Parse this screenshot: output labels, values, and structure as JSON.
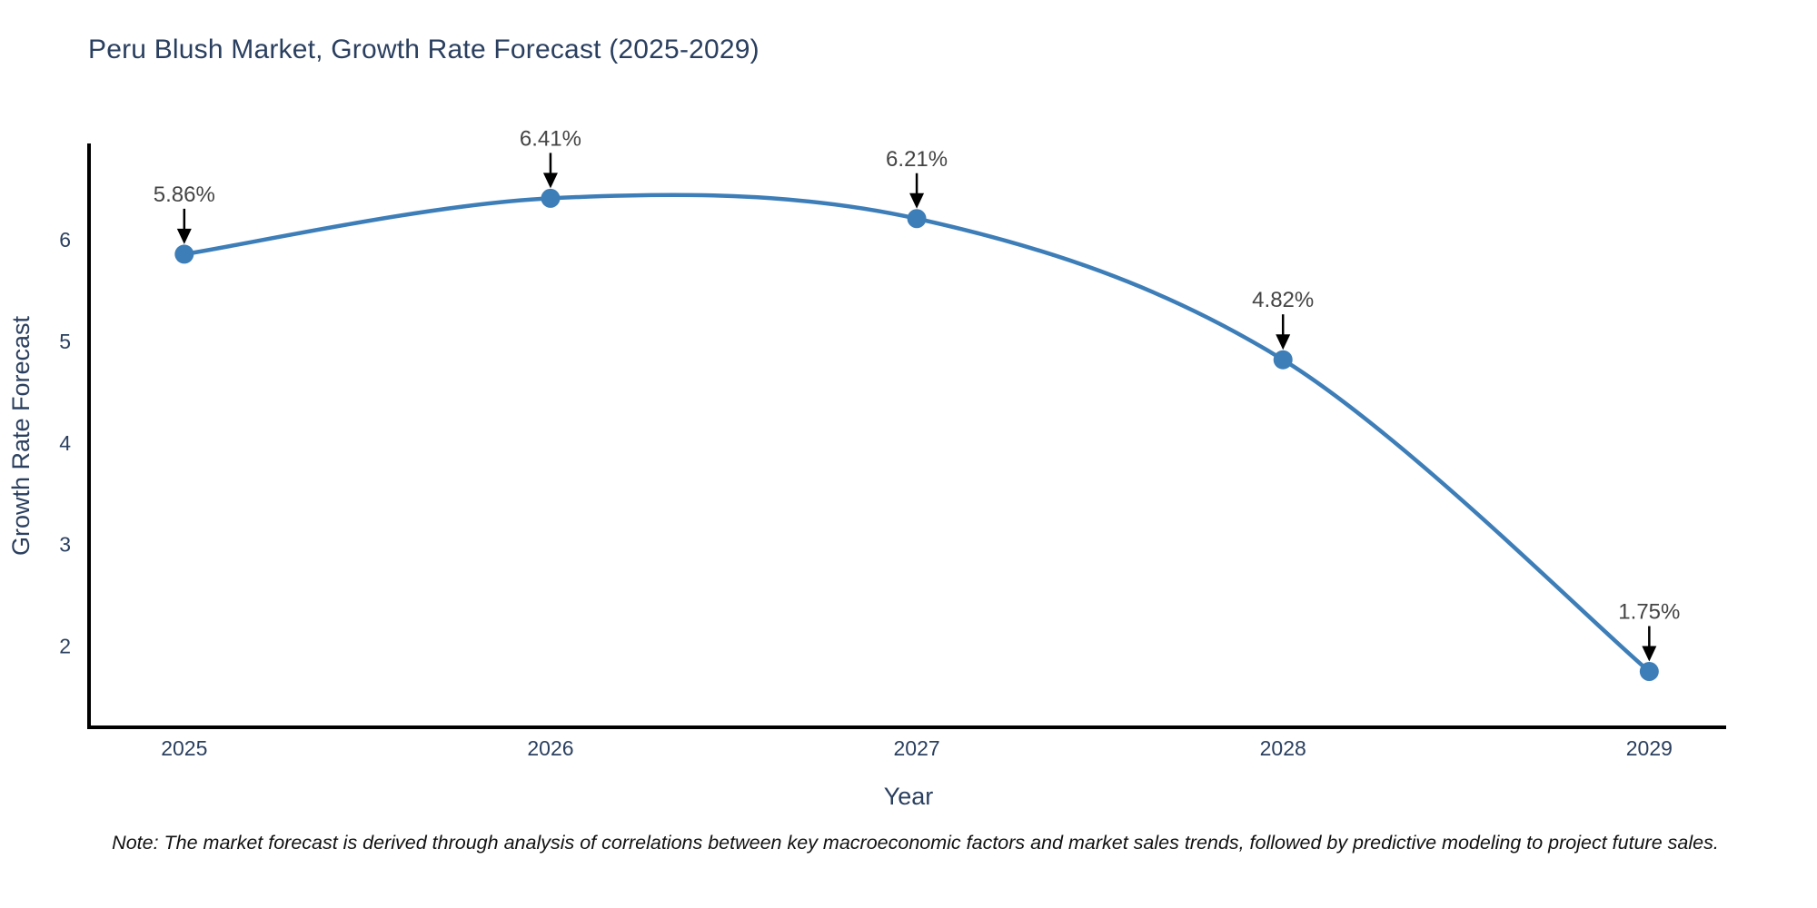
{
  "chart_data": {
    "type": "line",
    "title": "Peru Blush Market, Growth Rate Forecast (2025-2029)",
    "xlabel": "Year",
    "ylabel": "Growth Rate Forecast",
    "categories": [
      2025,
      2026,
      2027,
      2028,
      2029
    ],
    "series": [
      {
        "name": "Growth Rate Forecast",
        "values": [
          5.86,
          6.41,
          6.21,
          4.82,
          1.75
        ]
      }
    ],
    "point_labels": [
      "5.86%",
      "6.41%",
      "6.21%",
      "4.82%",
      "1.75%"
    ],
    "yticks": [
      2,
      3,
      4,
      5,
      6
    ],
    "ylim": [
      1.2,
      6.95
    ],
    "xlim": [
      2024.74,
      2029.21
    ],
    "grid": false,
    "legend_position": "none",
    "line_shape": "spline",
    "colors": {
      "line": "#3d7eb8",
      "marker": "#3d7eb8",
      "axis_line": "#000000",
      "title_text": "#2a3f5f",
      "axis_label_text": "#2a3f5f",
      "tick_text": "#2a3f5f",
      "annotation_text": "#444444",
      "annotation_arrow": "#000000",
      "background": "#ffffff",
      "note_text": "#111111"
    }
  },
  "note": "Note: The market forecast is derived through analysis of correlations between key macroeconomic factors and market sales trends, followed by predictive modeling to project future sales."
}
